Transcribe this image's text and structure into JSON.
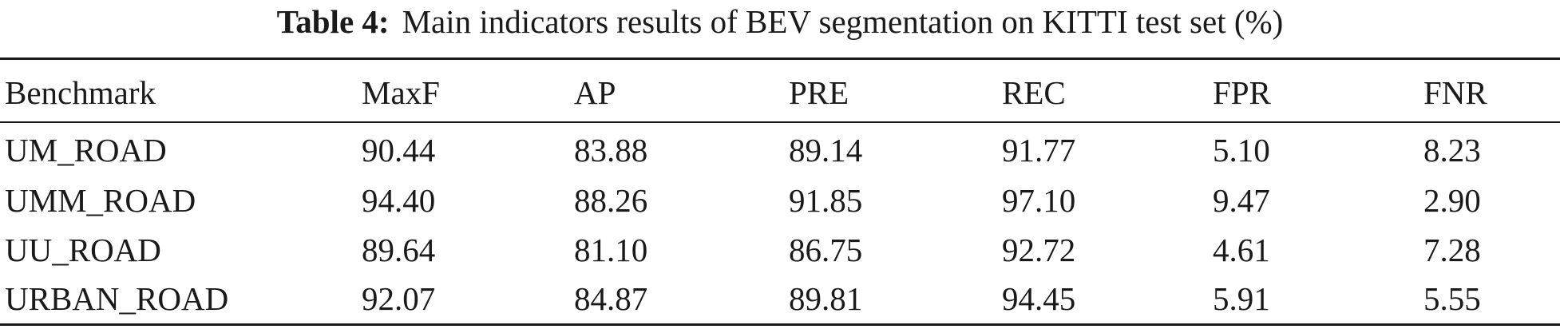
{
  "caption": {
    "label": "Table 4:",
    "text": "Main indicators results of BEV segmentation on KITTI test set (%)"
  },
  "table": {
    "headers": [
      "Benchmark",
      "MaxF",
      "AP",
      "PRE",
      "REC",
      "FPR",
      "FNR"
    ],
    "rows": [
      [
        "UM_ROAD",
        "90.44",
        "83.88",
        "89.14",
        "91.77",
        "5.10",
        "8.23"
      ],
      [
        "UMM_ROAD",
        "94.40",
        "88.26",
        "91.85",
        "97.10",
        "9.47",
        "2.90"
      ],
      [
        "UU_ROAD",
        "89.64",
        "81.10",
        "86.75",
        "92.72",
        "4.61",
        "7.28"
      ],
      [
        "URBAN_ROAD",
        "92.07",
        "84.87",
        "89.81",
        "94.45",
        "5.91",
        "5.55"
      ]
    ]
  }
}
